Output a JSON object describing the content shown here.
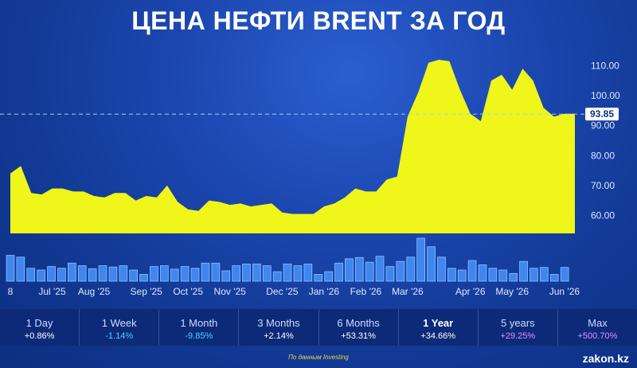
{
  "title": "ЦЕНА НЕФТИ BRENT ЗА ГОД",
  "current_price_label": "93.85",
  "source": "По данным Investing",
  "brand": "zakon.kz",
  "colors": {
    "area": "#f0f51a",
    "volume": "#3f87ee",
    "volume_edge": "#8fc0ff",
    "positive": "#ffffff",
    "negative": "#45d9ff",
    "highlight": "#e98cff"
  },
  "periods": [
    {
      "label": "1 Day",
      "value": "+0.86%",
      "tone": "positive"
    },
    {
      "label": "1 Week",
      "value": "-1.14%",
      "tone": "negative"
    },
    {
      "label": "1 Month",
      "value": "-9.85%",
      "tone": "negative"
    },
    {
      "label": "3 Months",
      "value": "+2.14%",
      "tone": "positive"
    },
    {
      "label": "6 Months",
      "value": "+53.31%",
      "tone": "positive"
    },
    {
      "label": "1 Year",
      "value": "+34.66%",
      "tone": "positive",
      "active": true
    },
    {
      "label": "5 years",
      "value": "+29.25%",
      "tone": "highlight"
    },
    {
      "label": "Max",
      "value": "+500.70%",
      "tone": "highlight"
    }
  ],
  "chart_data": {
    "type": "area",
    "title": "ЦЕНА НЕФТИ BRENT ЗА ГОД",
    "ylim": [
      54,
      116
    ],
    "y_ticks": [
      "60.00",
      "70.00",
      "80.00",
      "90.00",
      "100.00",
      "110.00"
    ],
    "x_tick_labels": [
      "8",
      "Jul '25",
      "Aug '25",
      "Sep '25",
      "Oct '25",
      "Nov '25",
      "Dec '25",
      "Jan '26",
      "Feb '26",
      "Mar '26",
      "Apr '26",
      "May '26",
      "Jun '26"
    ],
    "x_tick_index": [
      0,
      4,
      8,
      13,
      17,
      21,
      26,
      30,
      34,
      38,
      44,
      48,
      53
    ],
    "current_price": 93.85,
    "grid": false,
    "series": [
      {
        "values": [
          74,
          76.5,
          67.5,
          67,
          69,
          69,
          68,
          68,
          66.5,
          66,
          67.5,
          67.5,
          65,
          66.5,
          66,
          70,
          64.5,
          62,
          61.5,
          65,
          64.5,
          63.5,
          64,
          63,
          63.5,
          64,
          61,
          60.5,
          60.5,
          60.5,
          63,
          64,
          66,
          69,
          68,
          68,
          72,
          73,
          93,
          101,
          111,
          112,
          111.5,
          102,
          94,
          91.5,
          105,
          107,
          102,
          109,
          105,
          96,
          93,
          94,
          94
        ]
      }
    ],
    "volume": {
      "max": 100,
      "values": [
        60,
        56,
        30,
        26,
        34,
        30,
        42,
        36,
        29,
        36,
        33,
        36,
        26,
        16,
        34,
        36,
        28,
        34,
        30,
        42,
        42,
        24,
        36,
        40,
        40,
        36,
        22,
        40,
        36,
        40,
        16,
        22,
        42,
        52,
        55,
        44,
        58,
        34,
        46,
        56,
        100,
        80,
        56,
        30,
        26,
        48,
        38,
        30,
        26,
        18,
        46,
        30,
        32,
        16,
        32
      ]
    }
  }
}
